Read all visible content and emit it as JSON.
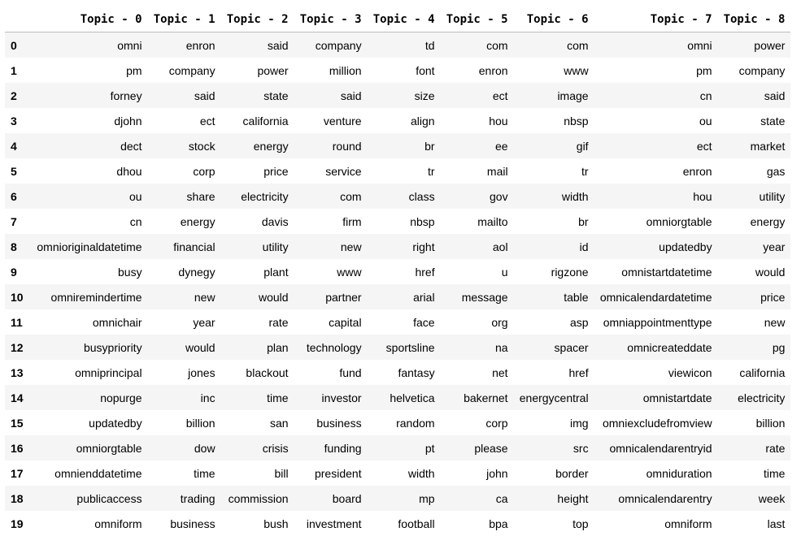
{
  "table": {
    "columns": [
      "",
      "Topic - 0",
      "Topic - 1",
      "Topic - 2",
      "Topic - 3",
      "Topic - 4",
      "Topic - 5",
      "Topic - 6",
      "Topic - 7",
      "Topic - 8"
    ],
    "rows": [
      {
        "index": "0",
        "cells": [
          "omni",
          "enron",
          "said",
          "company",
          "td",
          "com",
          "com",
          "omni",
          "power"
        ]
      },
      {
        "index": "1",
        "cells": [
          "pm",
          "company",
          "power",
          "million",
          "font",
          "enron",
          "www",
          "pm",
          "company"
        ]
      },
      {
        "index": "2",
        "cells": [
          "forney",
          "said",
          "state",
          "said",
          "size",
          "ect",
          "image",
          "cn",
          "said"
        ]
      },
      {
        "index": "3",
        "cells": [
          "djohn",
          "ect",
          "california",
          "venture",
          "align",
          "hou",
          "nbsp",
          "ou",
          "state"
        ]
      },
      {
        "index": "4",
        "cells": [
          "dect",
          "stock",
          "energy",
          "round",
          "br",
          "ee",
          "gif",
          "ect",
          "market"
        ]
      },
      {
        "index": "5",
        "cells": [
          "dhou",
          "corp",
          "price",
          "service",
          "tr",
          "mail",
          "tr",
          "enron",
          "gas"
        ]
      },
      {
        "index": "6",
        "cells": [
          "ou",
          "share",
          "electricity",
          "com",
          "class",
          "gov",
          "width",
          "hou",
          "utility"
        ]
      },
      {
        "index": "7",
        "cells": [
          "cn",
          "energy",
          "davis",
          "firm",
          "nbsp",
          "mailto",
          "br",
          "omniorgtable",
          "energy"
        ]
      },
      {
        "index": "8",
        "cells": [
          "omnioriginaldatetime",
          "financial",
          "utility",
          "new",
          "right",
          "aol",
          "id",
          "updatedby",
          "year"
        ]
      },
      {
        "index": "9",
        "cells": [
          "busy",
          "dynegy",
          "plant",
          "www",
          "href",
          "u",
          "rigzone",
          "omnistartdatetime",
          "would"
        ]
      },
      {
        "index": "10",
        "cells": [
          "omniremindertime",
          "new",
          "would",
          "partner",
          "arial",
          "message",
          "table",
          "omnicalendardatetime",
          "price"
        ]
      },
      {
        "index": "11",
        "cells": [
          "omnichair",
          "year",
          "rate",
          "capital",
          "face",
          "org",
          "asp",
          "omniappointmenttype",
          "new"
        ]
      },
      {
        "index": "12",
        "cells": [
          "busypriority",
          "would",
          "plan",
          "technology",
          "sportsline",
          "na",
          "spacer",
          "omnicreateddate",
          "pg"
        ]
      },
      {
        "index": "13",
        "cells": [
          "omniprincipal",
          "jones",
          "blackout",
          "fund",
          "fantasy",
          "net",
          "href",
          "viewicon",
          "california"
        ]
      },
      {
        "index": "14",
        "cells": [
          "nopurge",
          "inc",
          "time",
          "investor",
          "helvetica",
          "bakernet",
          "energycentral",
          "omnistartdate",
          "electricity"
        ]
      },
      {
        "index": "15",
        "cells": [
          "updatedby",
          "billion",
          "san",
          "business",
          "random",
          "corp",
          "img",
          "omniexcludefromview",
          "billion"
        ]
      },
      {
        "index": "16",
        "cells": [
          "omniorgtable",
          "dow",
          "crisis",
          "funding",
          "pt",
          "please",
          "src",
          "omnicalendarentryid",
          "rate"
        ]
      },
      {
        "index": "17",
        "cells": [
          "omnienddatetime",
          "time",
          "bill",
          "president",
          "width",
          "john",
          "border",
          "omniduration",
          "time"
        ]
      },
      {
        "index": "18",
        "cells": [
          "publicaccess",
          "trading",
          "commission",
          "board",
          "mp",
          "ca",
          "height",
          "omnicalendarentry",
          "week"
        ]
      },
      {
        "index": "19",
        "cells": [
          "omniform",
          "business",
          "bush",
          "investment",
          "football",
          "bpa",
          "top",
          "omniform",
          "last"
        ]
      }
    ]
  }
}
